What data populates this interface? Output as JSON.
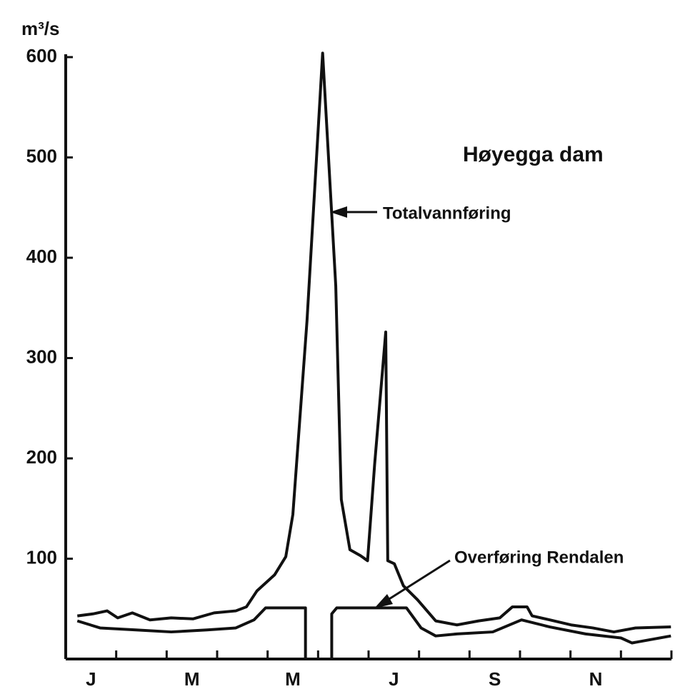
{
  "chart_data": {
    "type": "line",
    "title": "Høyegga dam",
    "y_label": "m³/s",
    "categories": [
      "J",
      null,
      "M",
      null,
      "M",
      null,
      "J",
      null,
      "S",
      null,
      "N",
      null
    ],
    "xlim": [
      0,
      12
    ],
    "xticks": [
      0,
      1,
      2,
      3,
      4,
      5,
      6,
      7,
      8,
      9,
      10,
      11,
      12
    ],
    "ylim": [
      0,
      600
    ],
    "yticks": [
      100,
      200,
      300,
      400,
      500,
      600
    ],
    "grid": false,
    "series": [
      {
        "name": "Totalvannføring",
        "color": "#111111",
        "x": [
          0.23,
          0.54,
          0.82,
          1.03,
          1.32,
          1.67,
          2.09,
          2.52,
          2.94,
          3.37,
          3.58,
          3.79,
          4.14,
          4.36,
          4.5,
          4.78,
          5.09,
          5.35,
          5.46,
          5.63,
          5.84,
          5.98,
          6.12,
          6.34,
          6.38,
          6.51,
          6.69,
          6.97,
          7.33,
          7.75,
          8.18,
          8.6,
          8.85,
          9.14,
          9.24,
          9.59,
          10.01,
          10.44,
          10.86,
          11.29,
          11.99
        ],
        "values": [
          43,
          45,
          48,
          41,
          46,
          39,
          41,
          40,
          46,
          48,
          52,
          68,
          84,
          102,
          144,
          337,
          604,
          372,
          159,
          109,
          103,
          98,
          194,
          326,
          98,
          95,
          73,
          59,
          38,
          34,
          38,
          41,
          52,
          52,
          43,
          39,
          34,
          31,
          27,
          31,
          32
        ]
      },
      {
        "name": "Overføring Rendalen",
        "color": "#111111",
        "x": [
          0.23,
          0.68,
          1.39,
          2.09,
          2.8,
          3.37,
          3.73,
          3.96,
          4.75,
          4.75,
          5.27,
          5.27,
          5.37,
          6.75,
          7.04,
          7.33,
          7.75,
          8.46,
          9.03,
          9.59,
          10.3,
          11.0,
          11.22,
          11.99
        ],
        "values": [
          38,
          31,
          29,
          27,
          29,
          31,
          39,
          51,
          51,
          0,
          0,
          45,
          51,
          51,
          31,
          23,
          25,
          27,
          39,
          32,
          25,
          21,
          16,
          23
        ]
      }
    ]
  }
}
